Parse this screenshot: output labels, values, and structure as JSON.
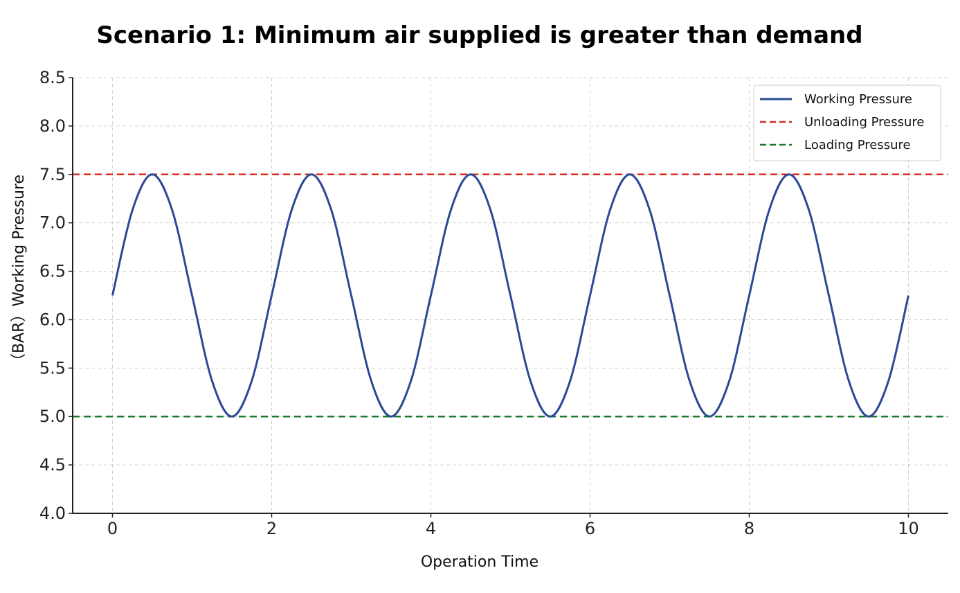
{
  "chart_data": {
    "type": "line",
    "title": "Scenario 1: Minimum air supplied is greater than demand",
    "xlabel": "Operation Time",
    "ylabel": "（BAR）Working Pressure",
    "xlim": [
      -0.5,
      10.5
    ],
    "ylim": [
      4.0,
      8.5
    ],
    "x_ticks": [
      0,
      2,
      4,
      6,
      8,
      10
    ],
    "x_tick_labels": [
      "0",
      "2",
      "4",
      "6",
      "8",
      "10"
    ],
    "y_ticks": [
      4.0,
      4.5,
      5.0,
      5.5,
      6.0,
      6.5,
      7.0,
      7.5,
      8.0,
      8.5
    ],
    "y_tick_labels": [
      "4.0",
      "4.5",
      "5.0",
      "5.5",
      "6.0",
      "6.5",
      "7.0",
      "7.5",
      "8.0",
      "8.5"
    ],
    "grid": true,
    "legend_position": "top-right",
    "series": [
      {
        "name": "Working Pressure",
        "style": "solid",
        "color": "#2a4a94",
        "x": [
          0,
          0.25,
          0.5,
          0.75,
          1.0,
          1.25,
          1.5,
          1.75,
          2.0,
          2.25,
          2.5,
          2.75,
          3.0,
          3.25,
          3.5,
          3.75,
          4.0,
          4.25,
          4.5,
          4.75,
          5.0,
          5.25,
          5.5,
          5.75,
          6.0,
          6.25,
          6.5,
          6.75,
          7.0,
          7.25,
          7.5,
          7.75,
          8.0,
          8.25,
          8.5,
          8.75,
          9.0,
          9.25,
          9.5,
          9.75,
          10.0
        ],
        "y": [
          6.25,
          7.13,
          7.5,
          7.13,
          6.25,
          5.37,
          5.0,
          5.37,
          6.25,
          7.13,
          7.5,
          7.13,
          6.25,
          5.37,
          5.0,
          5.37,
          6.25,
          7.13,
          7.5,
          7.13,
          6.25,
          5.37,
          5.0,
          5.37,
          6.25,
          7.13,
          7.5,
          7.13,
          6.25,
          5.37,
          5.0,
          5.37,
          6.25,
          7.13,
          7.5,
          7.13,
          6.25,
          5.37,
          5.0,
          5.37,
          6.25
        ]
      },
      {
        "name": "Unloading Pressure",
        "style": "dashed",
        "color": "#d62a1e",
        "value": 7.5
      },
      {
        "name": "Loading Pressure",
        "style": "dashed",
        "color": "#1a7a2e",
        "value": 5.0
      }
    ]
  }
}
